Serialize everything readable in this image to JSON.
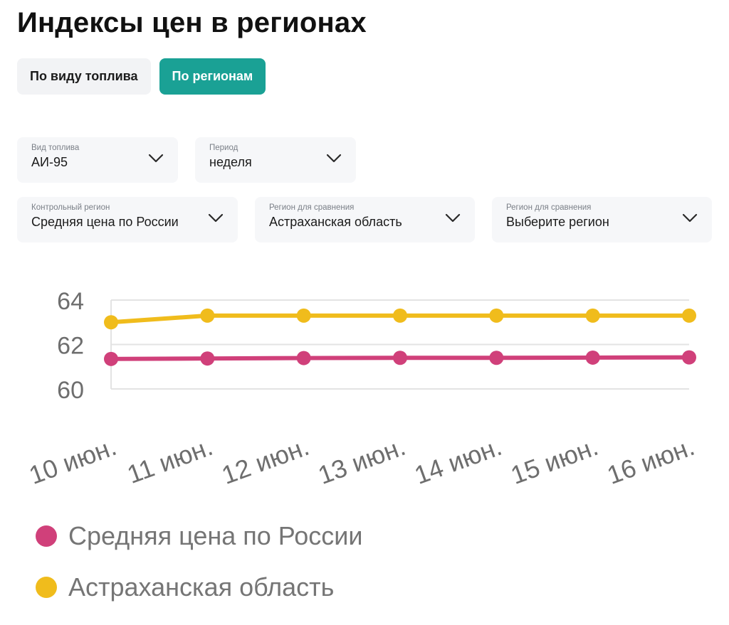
{
  "title": "Индексы цен в регионах",
  "tabs": [
    {
      "label": "По виду топлива",
      "active": false
    },
    {
      "label": "По регионам",
      "active": true
    }
  ],
  "filters": {
    "fuel": {
      "label": "Вид топлива",
      "value": "АИ-95",
      "icon": "chevron-down-icon"
    },
    "period": {
      "label": "Период",
      "value": "неделя",
      "icon": "chevron-down-icon"
    },
    "control_region": {
      "label": "Контрольный регион",
      "value": "Средняя цена по России",
      "icon": "chevron-down-icon"
    },
    "compare_region_1": {
      "label": "Регион для сравнения",
      "value": "Астраханская область",
      "icon": "chevron-down-icon"
    },
    "compare_region_2": {
      "label": "Регион для сравнения",
      "value": "Выберите регион",
      "icon": "chevron-down-icon"
    }
  },
  "colors": {
    "accent": "#1aa195",
    "russia": "#d0407a",
    "astrakhan": "#f0bc1c"
  },
  "chart_data": {
    "type": "line",
    "x": [
      "10 июн.",
      "11 июн.",
      "12 июн.",
      "13 июн.",
      "14 июн.",
      "15 июн.",
      "16 июн."
    ],
    "y_ticks": [
      "60",
      "62",
      "64"
    ],
    "ylim": [
      60,
      64
    ],
    "grid": true,
    "legend_position": "bottom",
    "series": [
      {
        "name": "Средняя цена по России",
        "color": "#d0407a",
        "values": [
          61.35,
          61.37,
          61.39,
          61.4,
          61.4,
          61.41,
          61.42
        ]
      },
      {
        "name": "Астраханская область",
        "color": "#f0bc1c",
        "values": [
          63.0,
          63.3,
          63.3,
          63.3,
          63.3,
          63.3,
          63.3
        ]
      }
    ]
  }
}
